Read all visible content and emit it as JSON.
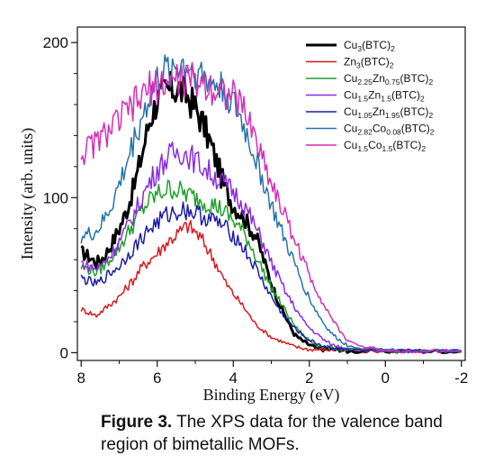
{
  "figure": {
    "caption_prefix": "Figure 3.",
    "caption_text": " The XPS data for the valence band region of bimetallic MOFs."
  },
  "chart_data": {
    "type": "line",
    "xlabel": "Binding Energy (eV)",
    "ylabel": "Intensity (arb. units)",
    "xlim": [
      8.1,
      -2.1
    ],
    "ylim": [
      -5,
      210
    ],
    "x_ticks": [
      8,
      6,
      4,
      2,
      0,
      -2
    ],
    "y_ticks": [
      0,
      100,
      200
    ],
    "grid": false,
    "legend_position": "top-right",
    "series": [
      {
        "name": "Cu3(BTC)2",
        "name_parts": [
          [
            "Cu",
            ""
          ],
          [
            "3",
            "sub"
          ],
          [
            "(BTC)",
            ""
          ],
          [
            "2",
            "sub"
          ]
        ],
        "color": "#000000",
        "width": 3,
        "x": [
          8,
          7.8,
          7.6,
          7.4,
          7.2,
          7,
          6.8,
          6.6,
          6.4,
          6.2,
          6,
          5.8,
          5.6,
          5.4,
          5.2,
          5,
          4.8,
          4.6,
          4.4,
          4.2,
          4,
          3.8,
          3.6,
          3.4,
          3.2,
          3,
          2.8,
          2.6,
          2.4,
          2.2,
          2,
          1.8,
          1.6,
          1.4,
          1.2,
          1,
          0.5,
          0,
          -0.5,
          -1,
          -1.5,
          -2
        ],
        "y": [
          65,
          62,
          58,
          62,
          70,
          80,
          92,
          108,
          128,
          150,
          163,
          168,
          170,
          170,
          165,
          158,
          148,
          135,
          120,
          105,
          95,
          90,
          82,
          75,
          60,
          45,
          32,
          22,
          12,
          8,
          5,
          3,
          2,
          2,
          2,
          1,
          1,
          1,
          1,
          1,
          1,
          1
        ]
      },
      {
        "name": "Zn3(BTC)2",
        "name_parts": [
          [
            "Zn",
            ""
          ],
          [
            "3",
            "sub"
          ],
          [
            "(BTC)",
            ""
          ],
          [
            "2",
            "sub"
          ]
        ],
        "color": "#d7191c",
        "width": 1.5,
        "x": [
          8,
          7.8,
          7.6,
          7.4,
          7.2,
          7,
          6.8,
          6.6,
          6.4,
          6.2,
          6,
          5.8,
          5.6,
          5.4,
          5.2,
          5,
          4.8,
          4.6,
          4.4,
          4.2,
          4,
          3.8,
          3.6,
          3.4,
          3.2,
          3,
          2.8,
          2.6,
          2.4,
          2.2,
          2,
          1.8,
          1.6,
          1.4,
          1.2,
          1,
          0.5,
          0,
          -0.5,
          -1,
          -1.5,
          -2
        ],
        "y": [
          28,
          26,
          24,
          28,
          32,
          36,
          42,
          48,
          55,
          60,
          64,
          70,
          74,
          78,
          82,
          78,
          72,
          64,
          55,
          45,
          38,
          32,
          25,
          18,
          14,
          10,
          8,
          6,
          4,
          3,
          2,
          2,
          2,
          2,
          2,
          2,
          1,
          1,
          1,
          1,
          1,
          1
        ]
      },
      {
        "name": "Cu2.25Zn0.75(BTC)2",
        "name_parts": [
          [
            "Cu",
            ""
          ],
          [
            "2.25",
            "sub"
          ],
          [
            "Zn",
            ""
          ],
          [
            "0.75",
            "sub"
          ],
          [
            "(BTC)",
            ""
          ],
          [
            "2",
            "sub"
          ]
        ],
        "color": "#1fa02a",
        "width": 1.5,
        "x": [
          8,
          7.8,
          7.6,
          7.4,
          7.2,
          7,
          6.8,
          6.6,
          6.4,
          6.2,
          6,
          5.8,
          5.6,
          5.4,
          5.2,
          5,
          4.8,
          4.6,
          4.4,
          4.2,
          4,
          3.8,
          3.6,
          3.4,
          3.2,
          3,
          2.8,
          2.6,
          2.4,
          2.2,
          2,
          1.8,
          1.6,
          1.4,
          1.2,
          1,
          0.5,
          0,
          -0.5,
          -1,
          -1.5,
          -2
        ],
        "y": [
          55,
          54,
          52,
          56,
          62,
          68,
          76,
          84,
          92,
          98,
          102,
          105,
          106,
          104,
          102,
          100,
          98,
          96,
          94,
          90,
          85,
          80,
          72,
          62,
          52,
          42,
          34,
          26,
          18,
          12,
          8,
          5,
          4,
          3,
          2,
          2,
          1,
          1,
          1,
          1,
          1,
          1
        ]
      },
      {
        "name": "Cu1.5Zn1.5(BTC)2",
        "name_parts": [
          [
            "Cu",
            ""
          ],
          [
            "1.5",
            "sub"
          ],
          [
            "Zn",
            ""
          ],
          [
            "1.5",
            "sub"
          ],
          [
            "(BTC)",
            ""
          ],
          [
            "2",
            "sub"
          ]
        ],
        "color": "#8a2be2",
        "width": 1.5,
        "x": [
          8,
          7.8,
          7.6,
          7.4,
          7.2,
          7,
          6.8,
          6.6,
          6.4,
          6.2,
          6,
          5.8,
          5.6,
          5.4,
          5.2,
          5,
          4.8,
          4.6,
          4.4,
          4.2,
          4,
          3.8,
          3.6,
          3.4,
          3.2,
          3,
          2.8,
          2.6,
          2.4,
          2.2,
          2,
          1.8,
          1.6,
          1.4,
          1.2,
          1,
          0.5,
          0,
          -0.5,
          -1,
          -1.5,
          -2
        ],
        "y": [
          58,
          56,
          54,
          58,
          64,
          72,
          80,
          90,
          100,
          110,
          118,
          124,
          128,
          130,
          128,
          124,
          120,
          116,
          112,
          108,
          104,
          98,
          90,
          80,
          70,
          58,
          48,
          38,
          30,
          22,
          16,
          12,
          8,
          5,
          4,
          3,
          2,
          1,
          1,
          1,
          1,
          1
        ]
      },
      {
        "name": "Cu1.05Zn1.95(BTC)2",
        "name_parts": [
          [
            "Cu",
            ""
          ],
          [
            "1.05",
            "sub"
          ],
          [
            "Zn",
            ""
          ],
          [
            "1.95",
            "sub"
          ],
          [
            "(BTC)",
            ""
          ],
          [
            "2",
            "sub"
          ]
        ],
        "color": "#1c1ca8",
        "width": 1.5,
        "x": [
          8,
          7.8,
          7.6,
          7.4,
          7.2,
          7,
          6.8,
          6.6,
          6.4,
          6.2,
          6,
          5.8,
          5.6,
          5.4,
          5.2,
          5,
          4.8,
          4.6,
          4.4,
          4.2,
          4,
          3.8,
          3.6,
          3.4,
          3.2,
          3,
          2.8,
          2.6,
          2.4,
          2.2,
          2,
          1.8,
          1.6,
          1.4,
          1.2,
          1,
          0.5,
          0,
          -0.5,
          -1,
          -1.5,
          -2
        ],
        "y": [
          48,
          46,
          44,
          48,
          52,
          56,
          62,
          68,
          74,
          80,
          84,
          88,
          90,
          92,
          92,
          90,
          88,
          86,
          84,
          80,
          76,
          70,
          62,
          54,
          45,
          36,
          28,
          22,
          16,
          12,
          8,
          6,
          4,
          3,
          2,
          2,
          1,
          1,
          1,
          1,
          1,
          1
        ]
      },
      {
        "name": "Cu2.82Co0.08(BTC)2",
        "name_parts": [
          [
            "Cu",
            ""
          ],
          [
            "2.82",
            "sub"
          ],
          [
            "Co",
            ""
          ],
          [
            "0.08",
            "sub"
          ],
          [
            "(BTC)",
            ""
          ],
          [
            "2",
            "sub"
          ]
        ],
        "color": "#2474a8",
        "width": 1.5,
        "x": [
          8,
          7.8,
          7.6,
          7.4,
          7.2,
          7,
          6.8,
          6.6,
          6.4,
          6.2,
          6,
          5.8,
          5.6,
          5.4,
          5.2,
          5,
          4.8,
          4.6,
          4.4,
          4.2,
          4,
          3.8,
          3.6,
          3.4,
          3.2,
          3,
          2.8,
          2.6,
          2.4,
          2.2,
          2,
          1.8,
          1.6,
          1.4,
          1.2,
          1,
          0.5,
          0,
          -0.5,
          -1,
          -1.5,
          -2
        ],
        "y": [
          75,
          76,
          78,
          85,
          95,
          108,
          122,
          138,
          152,
          165,
          175,
          180,
          184,
          186,
          185,
          182,
          178,
          175,
          172,
          168,
          160,
          150,
          138,
          124,
          110,
          95,
          82,
          70,
          58,
          46,
          35,
          26,
          18,
          12,
          8,
          5,
          3,
          2,
          1,
          1,
          1,
          1
        ]
      },
      {
        "name": "Cu1.5Co1.5(BTC)2",
        "name_parts": [
          [
            "Cu",
            ""
          ],
          [
            "1.5",
            "sub"
          ],
          [
            "Co",
            ""
          ],
          [
            "1.5",
            "sub"
          ],
          [
            "(BTC)",
            ""
          ],
          [
            "2",
            "sub"
          ]
        ],
        "color": "#d42fb8",
        "width": 1.5,
        "x": [
          8,
          7.8,
          7.6,
          7.4,
          7.2,
          7,
          6.8,
          6.6,
          6.4,
          6.2,
          6,
          5.8,
          5.6,
          5.4,
          5.2,
          5,
          4.8,
          4.6,
          4.4,
          4.2,
          4,
          3.8,
          3.6,
          3.4,
          3.2,
          3,
          2.8,
          2.6,
          2.4,
          2.2,
          2,
          1.8,
          1.6,
          1.4,
          1.2,
          1,
          0.5,
          0,
          -0.5,
          -1,
          -1.5,
          -2
        ],
        "y": [
          128,
          132,
          136,
          140,
          145,
          150,
          155,
          160,
          165,
          170,
          172,
          174,
          175,
          176,
          176,
          175,
          174,
          172,
          170,
          168,
          165,
          160,
          150,
          138,
          124,
          110,
          98,
          86,
          74,
          62,
          50,
          40,
          30,
          22,
          14,
          8,
          3,
          2,
          1,
          1,
          1,
          1
        ]
      }
    ]
  }
}
